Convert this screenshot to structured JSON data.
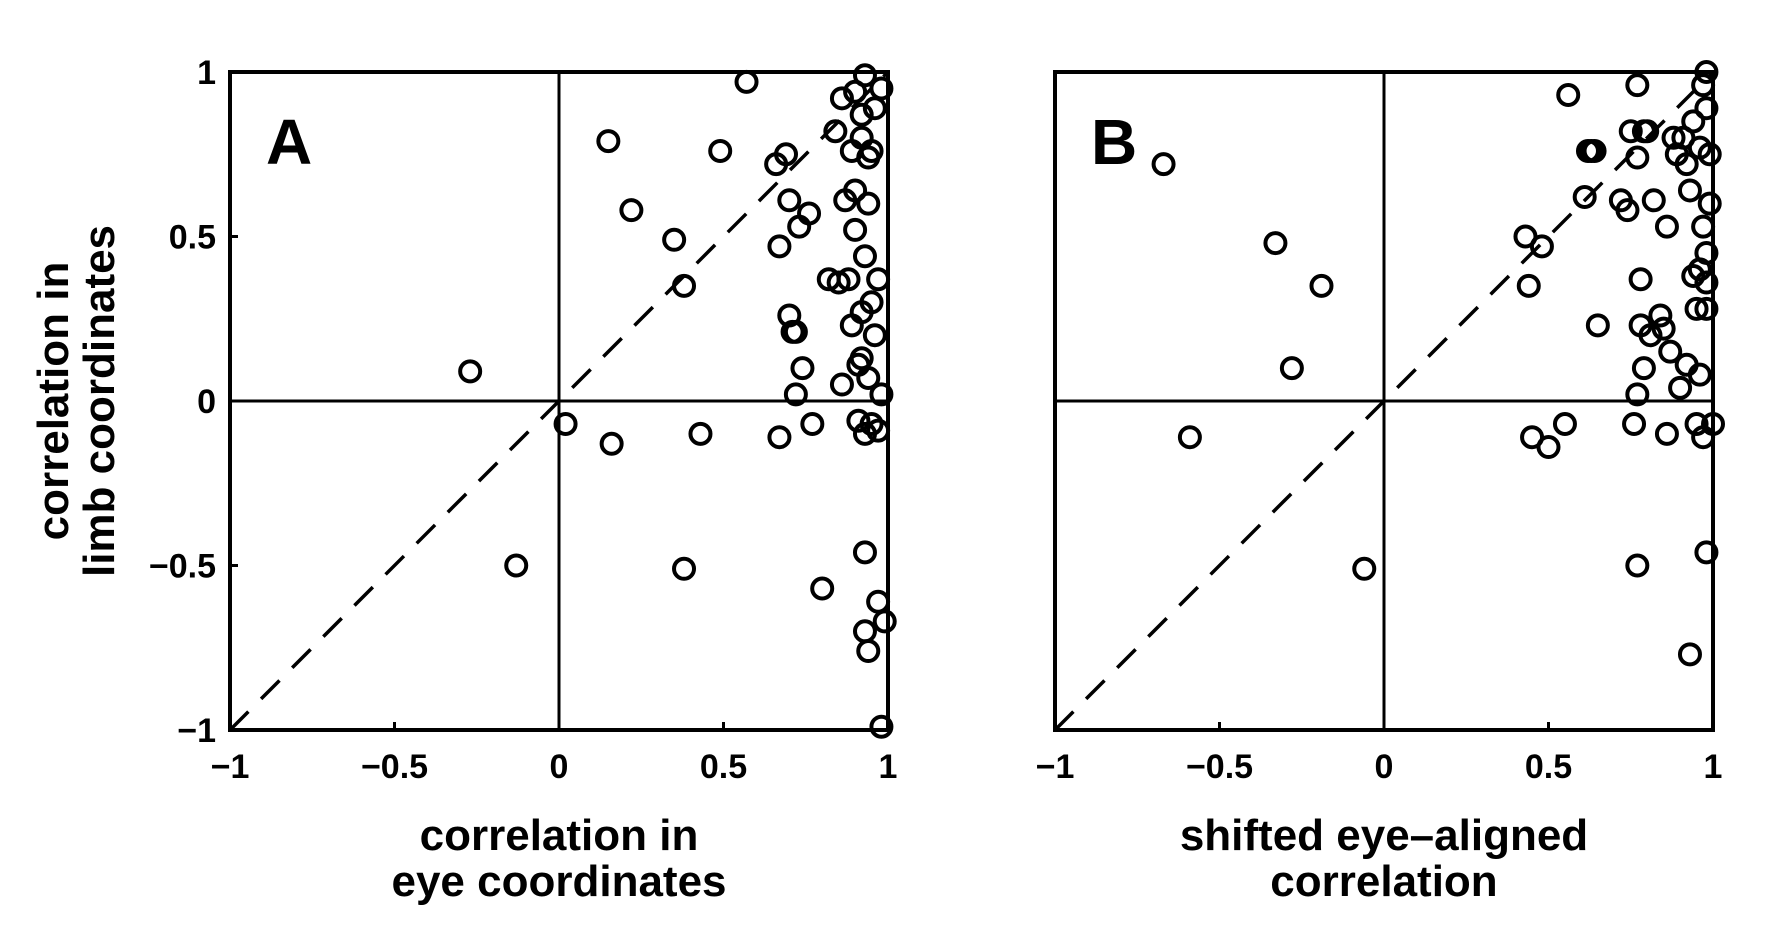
{
  "chart_data": [
    {
      "type": "scatter",
      "panel_label": "A",
      "xlabel": [
        "correlation in",
        "eye coordinates"
      ],
      "ylabel": [
        "correlation in",
        "limb coordinates"
      ],
      "xlim": [
        -1,
        1
      ],
      "ylim": [
        -1,
        1
      ],
      "xticks": [
        -1,
        -0.5,
        0,
        0.5,
        1
      ],
      "yticks": [
        -1,
        -0.5,
        0,
        0.5,
        1
      ],
      "xtick_labels": [
        "−1",
        "−0.5",
        "0",
        "0.5",
        "1"
      ],
      "ytick_labels": [
        "−1",
        "−0.5",
        "0",
        "0.5",
        "1"
      ],
      "zero_lines": true,
      "diagonal": "dashed",
      "marker": "open-circle",
      "points": [
        [
          -0.27,
          0.09
        ],
        [
          -0.13,
          -0.5
        ],
        [
          0.02,
          -0.07
        ],
        [
          0.16,
          -0.13
        ],
        [
          0.15,
          0.79
        ],
        [
          0.22,
          0.58
        ],
        [
          0.35,
          0.49
        ],
        [
          0.38,
          0.35
        ],
        [
          0.38,
          -0.51
        ],
        [
          0.43,
          -0.1
        ],
        [
          0.49,
          0.76
        ],
        [
          0.57,
          0.97
        ],
        [
          0.66,
          0.72
        ],
        [
          0.67,
          0.47
        ],
        [
          0.67,
          -0.11
        ],
        [
          0.69,
          0.75
        ],
        [
          0.7,
          0.26
        ],
        [
          0.7,
          0.61
        ],
        [
          0.71,
          0.21
        ],
        [
          0.72,
          0.21
        ],
        [
          0.72,
          0.02
        ],
        [
          0.73,
          0.53
        ],
        [
          0.74,
          0.1
        ],
        [
          0.76,
          0.57
        ],
        [
          0.77,
          -0.07
        ],
        [
          0.8,
          -0.57
        ],
        [
          0.82,
          0.37
        ],
        [
          0.84,
          0.82
        ],
        [
          0.85,
          0.36
        ],
        [
          0.86,
          0.05
        ],
        [
          0.86,
          0.92
        ],
        [
          0.87,
          0.61
        ],
        [
          0.88,
          0.37
        ],
        [
          0.89,
          0.23
        ],
        [
          0.89,
          0.76
        ],
        [
          0.9,
          0.94
        ],
        [
          0.9,
          0.52
        ],
        [
          0.9,
          0.64
        ],
        [
          0.91,
          -0.06
        ],
        [
          0.91,
          0.11
        ],
        [
          0.92,
          0.87
        ],
        [
          0.92,
          0.13
        ],
        [
          0.92,
          0.27
        ],
        [
          0.92,
          0.8
        ],
        [
          0.93,
          0.99
        ],
        [
          0.93,
          -0.46
        ],
        [
          0.93,
          -0.7
        ],
        [
          0.93,
          0.44
        ],
        [
          0.93,
          -0.1
        ],
        [
          0.94,
          0.6
        ],
        [
          0.94,
          -0.76
        ],
        [
          0.94,
          0.74
        ],
        [
          0.94,
          0.07
        ],
        [
          0.95,
          0.76
        ],
        [
          0.95,
          -0.07
        ],
        [
          0.95,
          0.3
        ],
        [
          0.96,
          0.89
        ],
        [
          0.96,
          0.2
        ],
        [
          0.97,
          0.37
        ],
        [
          0.97,
          -0.61
        ],
        [
          0.97,
          -0.09
        ],
        [
          0.98,
          0.95
        ],
        [
          0.98,
          0.02
        ],
        [
          0.99,
          -0.67
        ],
        [
          0.98,
          -0.99
        ]
      ]
    },
    {
      "type": "scatter",
      "panel_label": "B",
      "xlabel": [
        "shifted eye–aligned",
        "correlation"
      ],
      "ylabel": [],
      "xlim": [
        -1,
        1
      ],
      "ylim": [
        -1,
        1
      ],
      "xticks": [
        -1,
        -0.5,
        0,
        0.5,
        1
      ],
      "xtick_labels": [
        "−1",
        "−0.5",
        "0",
        "0.5",
        "1"
      ],
      "zero_lines": true,
      "diagonal": "dashed",
      "marker": "open-circle",
      "points": [
        [
          -0.67,
          0.72
        ],
        [
          -0.59,
          -0.11
        ],
        [
          -0.33,
          0.48
        ],
        [
          -0.28,
          0.1
        ],
        [
          -0.19,
          0.35
        ],
        [
          -0.06,
          -0.51
        ],
        [
          0.43,
          0.5
        ],
        [
          0.44,
          0.35
        ],
        [
          0.45,
          -0.11
        ],
        [
          0.48,
          0.47
        ],
        [
          0.5,
          -0.14
        ],
        [
          0.55,
          -0.07
        ],
        [
          0.56,
          0.93
        ],
        [
          0.61,
          0.62
        ],
        [
          0.62,
          0.76
        ],
        [
          0.63,
          0.76
        ],
        [
          0.64,
          0.76
        ],
        [
          0.65,
          0.23
        ],
        [
          0.72,
          0.61
        ],
        [
          0.74,
          0.58
        ],
        [
          0.75,
          0.82
        ],
        [
          0.76,
          -0.07
        ],
        [
          0.77,
          0.74
        ],
        [
          0.77,
          0.02
        ],
        [
          0.77,
          -0.5
        ],
        [
          0.77,
          0.96
        ],
        [
          0.78,
          0.23
        ],
        [
          0.78,
          0.37
        ],
        [
          0.79,
          0.1
        ],
        [
          0.79,
          0.82
        ],
        [
          0.8,
          0.82
        ],
        [
          0.81,
          0.2
        ],
        [
          0.82,
          0.61
        ],
        [
          0.84,
          0.26
        ],
        [
          0.85,
          0.22
        ],
        [
          0.86,
          -0.1
        ],
        [
          0.86,
          0.53
        ],
        [
          0.87,
          0.15
        ],
        [
          0.88,
          0.8
        ],
        [
          0.89,
          0.75
        ],
        [
          0.9,
          0.04
        ],
        [
          0.91,
          0.8
        ],
        [
          0.92,
          0.11
        ],
        [
          0.92,
          0.72
        ],
        [
          0.93,
          -0.77
        ],
        [
          0.93,
          0.64
        ],
        [
          0.94,
          0.85
        ],
        [
          0.94,
          0.38
        ],
        [
          0.95,
          -0.07
        ],
        [
          0.95,
          0.28
        ],
        [
          0.96,
          0.08
        ],
        [
          0.96,
          0.4
        ],
        [
          0.96,
          0.77
        ],
        [
          0.97,
          -0.11
        ],
        [
          0.97,
          0.96
        ],
        [
          0.97,
          0.53
        ],
        [
          0.98,
          0.45
        ],
        [
          0.98,
          0.89
        ],
        [
          0.98,
          0.36
        ],
        [
          0.98,
          0.28
        ],
        [
          0.98,
          -0.46
        ],
        [
          0.98,
          1.0
        ],
        [
          0.99,
          0.6
        ],
        [
          0.99,
          0.75
        ],
        [
          1.0,
          -0.07
        ]
      ]
    }
  ]
}
